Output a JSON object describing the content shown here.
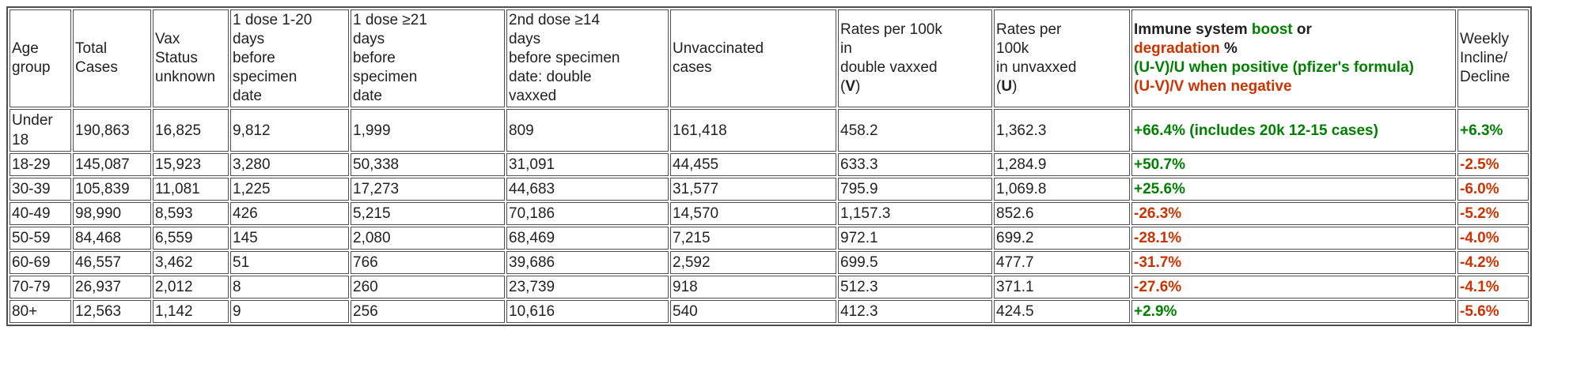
{
  "colors": {
    "green": "#008000",
    "red": "#cc3300",
    "text": "#222222",
    "border": "#4f4f4f"
  },
  "chart_data": {
    "type": "table",
    "title": "Cases and rates per 100k by age group and vaccination status with immune system boost/degradation %",
    "columns": [
      {
        "id": "age-group",
        "header": {
          "segments": [
            {
              "t": "Age\ngroup"
            }
          ]
        }
      },
      {
        "id": "total-cases",
        "header": {
          "segments": [
            {
              "t": "Total\nCases"
            }
          ]
        }
      },
      {
        "id": "vax-status-unknown",
        "header": {
          "segments": [
            {
              "t": "Vax\nStatus\nunknown"
            }
          ]
        }
      },
      {
        "id": "one-dose-1-20-days",
        "header": {
          "segments": [
            {
              "t": "1 dose 1-20\ndays\nbefore\nspecimen\ndate"
            }
          ]
        }
      },
      {
        "id": "one-dose-ge-21-days",
        "header": {
          "segments": [
            {
              "t": "1 dose ≥21\ndays\nbefore\nspecimen\ndate"
            }
          ]
        }
      },
      {
        "id": "second-dose-ge-14-days",
        "header": {
          "segments": [
            {
              "t": "2nd dose ≥14\ndays\nbefore specimen\ndate: double\nvaxxed"
            }
          ]
        }
      },
      {
        "id": "unvaccinated-cases",
        "header": {
          "segments": [
            {
              "t": "Unvaccinated\ncases"
            }
          ]
        }
      },
      {
        "id": "rates-per-100k-double-vaxxed",
        "header": {
          "segments": [
            {
              "t": "Rates per 100k\nin\ndouble vaxxed\n("
            },
            {
              "t": "V",
              "b": true
            },
            {
              "t": ")"
            }
          ]
        }
      },
      {
        "id": "rates-per-100k-unvaxxed",
        "header": {
          "segments": [
            {
              "t": "Rates per\n100k\nin unvaxxed\n("
            },
            {
              "t": "U",
              "b": true
            },
            {
              "t": ")"
            }
          ]
        }
      },
      {
        "id": "immune-system-boost-or-degradation",
        "header": {
          "segments": [
            {
              "t": "Immune system ",
              "b": true
            },
            {
              "t": "boost",
              "c": "green",
              "b": true
            },
            {
              "t": " or\n",
              "b": true
            },
            {
              "t": "degradation",
              "c": "red",
              "b": true
            },
            {
              "t": " %\n",
              "b": true
            },
            {
              "t": "(U-V)/U when positive (pfizer's formula)\n",
              "c": "green",
              "b": true
            },
            {
              "t": "(U-V)/V when negative",
              "c": "red",
              "b": true
            }
          ]
        }
      },
      {
        "id": "weekly-incline-decline",
        "header": {
          "segments": [
            {
              "t": "Weekly\nIncline/\nDecline"
            }
          ]
        }
      }
    ],
    "rows": [
      {
        "cells": [
          {
            "t": "Under 18"
          },
          {
            "t": "190,863"
          },
          {
            "t": "16,825"
          },
          {
            "t": "9,812"
          },
          {
            "t": "1,999"
          },
          {
            "t": "809"
          },
          {
            "t": "161,418"
          },
          {
            "t": "458.2"
          },
          {
            "t": "1,362.3"
          },
          {
            "t": "+66.4% (includes 20k 12-15 cases)",
            "c": "green",
            "b": true
          },
          {
            "t": "+6.3%",
            "c": "green",
            "b": true
          }
        ]
      },
      {
        "cells": [
          {
            "t": "18-29"
          },
          {
            "t": "145,087"
          },
          {
            "t": "15,923"
          },
          {
            "t": "3,280"
          },
          {
            "t": "50,338"
          },
          {
            "t": "31,091"
          },
          {
            "t": "44,455"
          },
          {
            "t": "633.3"
          },
          {
            "t": "1,284.9"
          },
          {
            "t": "+50.7%",
            "c": "green",
            "b": true
          },
          {
            "t": "-2.5%",
            "c": "red",
            "b": true
          }
        ]
      },
      {
        "cells": [
          {
            "t": "30-39"
          },
          {
            "t": "105,839"
          },
          {
            "t": "11,081"
          },
          {
            "t": "1,225"
          },
          {
            "t": "17,273"
          },
          {
            "t": "44,683"
          },
          {
            "t": "31,577"
          },
          {
            "t": "795.9"
          },
          {
            "t": "1,069.8"
          },
          {
            "t": "+25.6%",
            "c": "green",
            "b": true
          },
          {
            "t": "-6.0%",
            "c": "red",
            "b": true
          }
        ]
      },
      {
        "cells": [
          {
            "t": "40-49"
          },
          {
            "t": "98,990"
          },
          {
            "t": "8,593"
          },
          {
            "t": "426"
          },
          {
            "t": "5,215"
          },
          {
            "t": "70,186"
          },
          {
            "t": "14,570"
          },
          {
            "t": "1,157.3"
          },
          {
            "t": "852.6"
          },
          {
            "t": "-26.3%",
            "c": "red",
            "b": true
          },
          {
            "t": "-5.2%",
            "c": "red",
            "b": true
          }
        ]
      },
      {
        "cells": [
          {
            "t": "50-59"
          },
          {
            "t": "84,468"
          },
          {
            "t": "6,559"
          },
          {
            "t": "145"
          },
          {
            "t": "2,080"
          },
          {
            "t": "68,469"
          },
          {
            "t": "7,215"
          },
          {
            "t": "972.1"
          },
          {
            "t": "699.2"
          },
          {
            "t": "-28.1%",
            "c": "red",
            "b": true
          },
          {
            "t": "-4.0%",
            "c": "red",
            "b": true
          }
        ]
      },
      {
        "cells": [
          {
            "t": "60-69"
          },
          {
            "t": "46,557"
          },
          {
            "t": "3,462"
          },
          {
            "t": "51"
          },
          {
            "t": "766"
          },
          {
            "t": "39,686"
          },
          {
            "t": "2,592"
          },
          {
            "t": "699.5"
          },
          {
            "t": "477.7"
          },
          {
            "t": "-31.7%",
            "c": "red",
            "b": true
          },
          {
            "t": "-4.2%",
            "c": "red",
            "b": true
          }
        ]
      },
      {
        "cells": [
          {
            "t": "70-79"
          },
          {
            "t": "26,937"
          },
          {
            "t": "2,012"
          },
          {
            "t": "8"
          },
          {
            "t": "260"
          },
          {
            "t": "23,739"
          },
          {
            "t": "918"
          },
          {
            "t": "512.3"
          },
          {
            "t": "371.1"
          },
          {
            "t": "-27.6%",
            "c": "red",
            "b": true
          },
          {
            "t": "-4.1%",
            "c": "red",
            "b": true
          }
        ]
      },
      {
        "cells": [
          {
            "t": "80+"
          },
          {
            "t": "12,563"
          },
          {
            "t": "1,142"
          },
          {
            "t": "9"
          },
          {
            "t": "256"
          },
          {
            "t": "10,616"
          },
          {
            "t": "540"
          },
          {
            "t": "412.3"
          },
          {
            "t": "424.5"
          },
          {
            "t": "+2.9%",
            "c": "green",
            "b": true
          },
          {
            "t": "-5.6%",
            "c": "red",
            "b": true
          }
        ]
      }
    ]
  }
}
